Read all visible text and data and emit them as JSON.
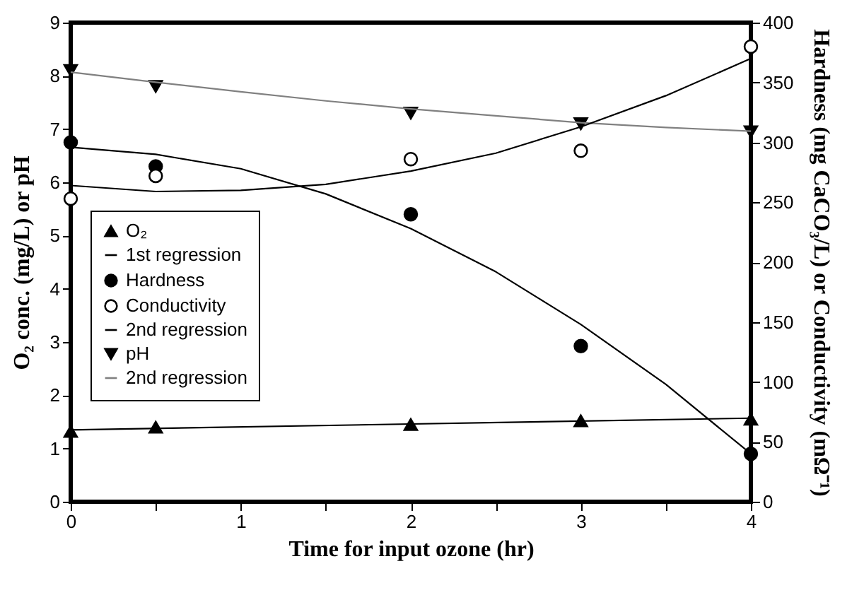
{
  "chart_data": {
    "type": "scatter",
    "xlabel": "Time for input ozone (hr)",
    "ylabel": "O₂ conc. (mg/L) or pH",
    "y2label": "Hardness (mg CaCO₃/L) or Conductivity (mΩ⁻¹)",
    "xlim": [
      0,
      4
    ],
    "xticks": [
      0,
      {
        "value": 0.5,
        "label": null
      },
      1,
      {
        "value": 1.5,
        "label": null
      },
      2,
      {
        "value": 2.5,
        "label": null
      },
      3,
      {
        "value": 3.5,
        "label": null
      },
      4
    ],
    "ylim": [
      0,
      9
    ],
    "yticks": [
      0,
      1,
      2,
      3,
      4,
      5,
      6,
      7,
      8,
      9
    ],
    "y2lim": [
      0,
      400
    ],
    "y2ticks": [
      0,
      50,
      100,
      150,
      200,
      250,
      300,
      350,
      400
    ],
    "legend": "left",
    "grid": false,
    "series": [
      {
        "name": "O₂",
        "marker": "triangle",
        "color": "#000000",
        "x": [
          0,
          0.5,
          2,
          3,
          4
        ],
        "values": [
          1.32,
          1.4,
          1.45,
          1.52,
          1.55
        ]
      },
      {
        "name": "1st regression",
        "type": "line",
        "color": "#000000",
        "x": [
          0,
          4
        ],
        "values": [
          1.35,
          1.57
        ]
      },
      {
        "name": "Hardness",
        "axis": "y2",
        "marker": "circle",
        "color": "#000000",
        "x": [
          0,
          0.5,
          2,
          3,
          4
        ],
        "values": [
          300,
          280,
          240,
          130,
          40
        ]
      },
      {
        "name": "Conductivity",
        "axis": "y2",
        "marker": "circle-open",
        "color": "#000000",
        "x": [
          0,
          0.5,
          2,
          3,
          4
        ],
        "values": [
          253,
          272,
          286,
          293,
          380
        ]
      },
      {
        "name": "2nd regression",
        "type": "line",
        "axis": "y2",
        "color": "#000000",
        "x": [
          0,
          0.5,
          1,
          1.5,
          2,
          2.5,
          3,
          3.5,
          4
        ],
        "values": [
          296,
          290,
          278,
          257,
          228,
          192,
          148,
          98,
          40
        ]
      },
      {
        "type": "line",
        "axis": "y2",
        "color": "#000000",
        "x": [
          0,
          0.5,
          1,
          1.5,
          2,
          2.5,
          3,
          3.5,
          4
        ],
        "values": [
          264,
          259,
          260,
          265,
          276,
          291,
          313,
          339,
          370
        ]
      },
      {
        "name": "pH",
        "marker": "triangle-down",
        "color": "#000000",
        "x": [
          0,
          0.5,
          2,
          3,
          4
        ],
        "values": [
          8.1,
          7.8,
          7.3,
          7.1,
          6.95
        ]
      },
      {
        "name": "2nd regression",
        "type": "line",
        "color": "#808080",
        "x": [
          0,
          0.5,
          1,
          1.5,
          2,
          2.5,
          3,
          3.5,
          4
        ],
        "values": [
          8.07,
          7.88,
          7.7,
          7.53,
          7.38,
          7.25,
          7.12,
          7.03,
          6.96
        ]
      }
    ]
  }
}
